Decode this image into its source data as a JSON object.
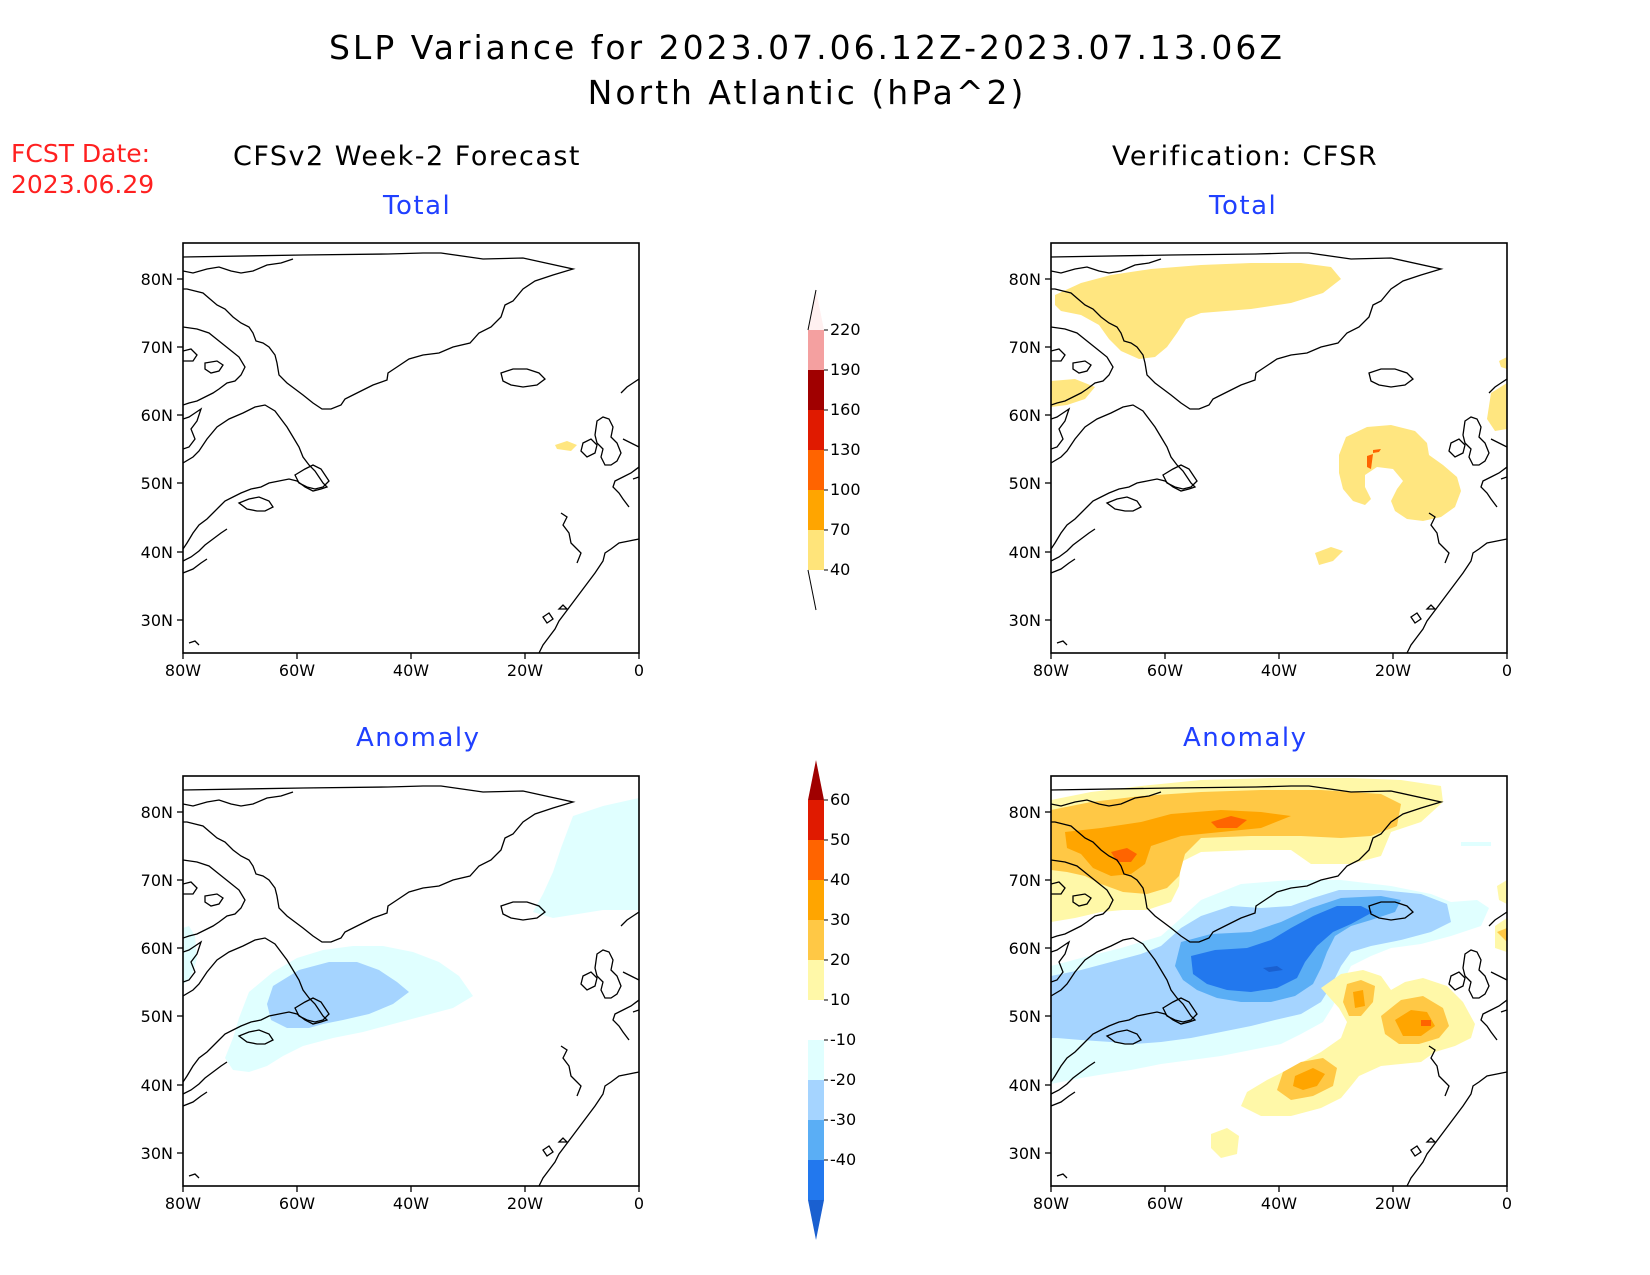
{
  "title": {
    "line1": "SLP Variance for 2023.07.06.12Z-2023.07.13.06Z",
    "line2": "North Atlantic (hPa^2)"
  },
  "fcst_label": {
    "line1": "FCST Date:",
    "line2": "2023.06.29"
  },
  "columns": {
    "left": "CFSv2 Week-2 Forecast",
    "right": "Verification: CFSR"
  },
  "panels": {
    "tl": "Total",
    "tr": "Total",
    "bl": "Anomaly",
    "br": "Anomaly"
  },
  "axes": {
    "lon_labels": [
      "80W",
      "60W",
      "40W",
      "20W",
      "0"
    ],
    "lat_labels": [
      "80N",
      "70N",
      "60N",
      "50N",
      "40N",
      "30N"
    ],
    "lon_range": [
      -80,
      0
    ],
    "lat_range": [
      25,
      85
    ]
  },
  "colorbar_total": {
    "ticks": [
      "220",
      "190",
      "160",
      "130",
      "100",
      "70",
      "40"
    ],
    "colors": [
      "#fff0f0",
      "#f4a0a0",
      "#a00000",
      "#e01a00",
      "#ff6400",
      "#ffa500",
      "#ffe47a"
    ]
  },
  "colorbar_anomaly": {
    "ticks": [
      "60",
      "50",
      "40",
      "30",
      "20",
      "10",
      "-10",
      "-20",
      "-30",
      "-40"
    ],
    "colors": [
      "#a00000",
      "#e01a00",
      "#ff6400",
      "#ffa500",
      "#ffc845",
      "#fff8a8",
      "#ffffff",
      "#e0ffff",
      "#a5d4ff",
      "#5aaef5",
      "#2278ee",
      "#1a60d0"
    ]
  },
  "colors": {
    "y40": "#ffe680",
    "o": "#ffc845",
    "o2": "#ffa500",
    "r": "#ff6400",
    "ly": "#fff8a8",
    "b10": "#e0ffff",
    "b20": "#a5d4ff",
    "b30": "#5aaef5",
    "b40": "#2278ee"
  }
}
